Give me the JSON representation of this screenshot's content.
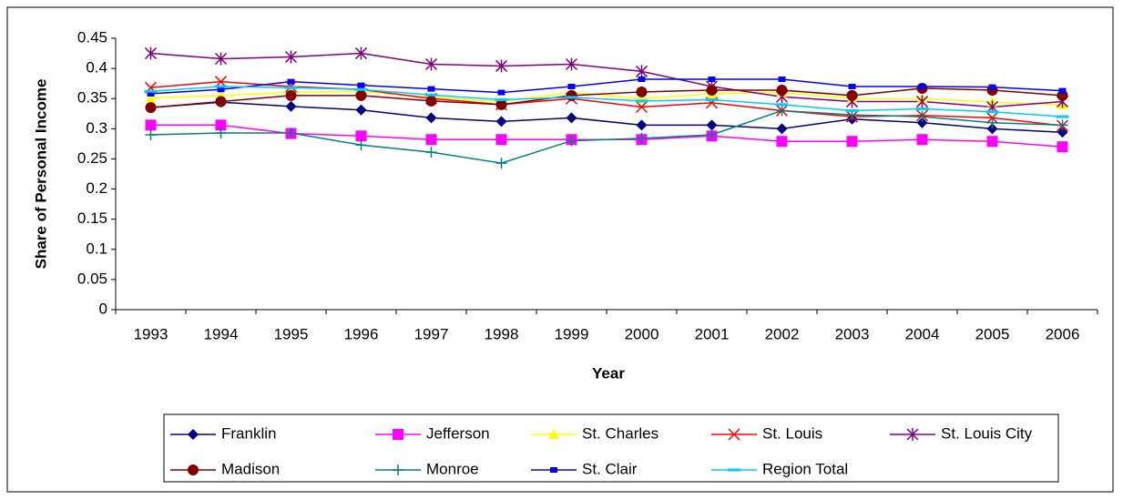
{
  "chart_data": {
    "type": "line",
    "y_label": "Share of Personal Income",
    "x_label": "Year",
    "categories": [
      "1993",
      "1994",
      "1995",
      "1996",
      "1997",
      "1998",
      "1999",
      "2000",
      "2001",
      "2002",
      "2003",
      "2004",
      "2005",
      "2006"
    ],
    "ylim": [
      0,
      0.45
    ],
    "yticks": [
      0,
      0.05,
      0.1,
      0.15,
      0.2,
      0.25,
      0.3,
      0.35,
      0.4,
      0.45
    ],
    "grid": false,
    "legend": "bottom",
    "series": [
      {
        "name": "Franklin",
        "color": "#000080",
        "marker": "diamond",
        "values": [
          0.335,
          0.344,
          0.337,
          0.331,
          0.318,
          0.312,
          0.318,
          0.306,
          0.306,
          0.3,
          0.316,
          0.31,
          0.3,
          0.294
        ]
      },
      {
        "name": "Jefferson",
        "color": "#ff00ff",
        "marker": "square",
        "values": [
          0.306,
          0.306,
          0.292,
          0.288,
          0.282,
          0.282,
          0.282,
          0.282,
          0.288,
          0.279,
          0.279,
          0.282,
          0.279,
          0.27
        ]
      },
      {
        "name": "St. Charles",
        "color": "#ffff00",
        "marker": "triangle",
        "values": [
          0.351,
          0.355,
          0.36,
          0.362,
          0.352,
          0.345,
          0.36,
          0.35,
          0.358,
          0.36,
          0.35,
          0.35,
          0.344,
          0.34
        ]
      },
      {
        "name": "St. Louis",
        "color": "#ff0000",
        "marker": "x",
        "values": [
          0.368,
          0.378,
          0.37,
          0.365,
          0.35,
          0.34,
          0.35,
          0.336,
          0.343,
          0.33,
          0.32,
          0.322,
          0.318,
          0.305
        ]
      },
      {
        "name": "St. Louis City",
        "color": "#800080",
        "marker": "star",
        "values": [
          0.425,
          0.416,
          0.419,
          0.425,
          0.407,
          0.404,
          0.407,
          0.395,
          0.37,
          0.353,
          0.345,
          0.345,
          0.336,
          0.345
        ]
      },
      {
        "name": "Madison",
        "color": "#800000",
        "marker": "circle",
        "values": [
          0.335,
          0.345,
          0.355,
          0.355,
          0.346,
          0.34,
          0.355,
          0.361,
          0.364,
          0.364,
          0.355,
          0.367,
          0.364,
          0.355
        ]
      },
      {
        "name": "Monroe",
        "color": "#008080",
        "marker": "plus",
        "values": [
          0.29,
          0.293,
          0.293,
          0.273,
          0.261,
          0.243,
          0.28,
          0.284,
          0.29,
          0.33,
          0.323,
          0.32,
          0.31,
          0.306
        ]
      },
      {
        "name": "St. Clair",
        "color": "#0000ff",
        "marker": "smallsquare",
        "values": [
          0.358,
          0.365,
          0.378,
          0.372,
          0.366,
          0.36,
          0.37,
          0.382,
          0.382,
          0.382,
          0.37,
          0.37,
          0.369,
          0.363
        ]
      },
      {
        "name": "Region Total",
        "color": "#00ccff",
        "marker": "dash",
        "values": [
          0.362,
          0.37,
          0.368,
          0.365,
          0.356,
          0.348,
          0.352,
          0.346,
          0.348,
          0.34,
          0.33,
          0.333,
          0.328,
          0.32
        ]
      }
    ]
  }
}
